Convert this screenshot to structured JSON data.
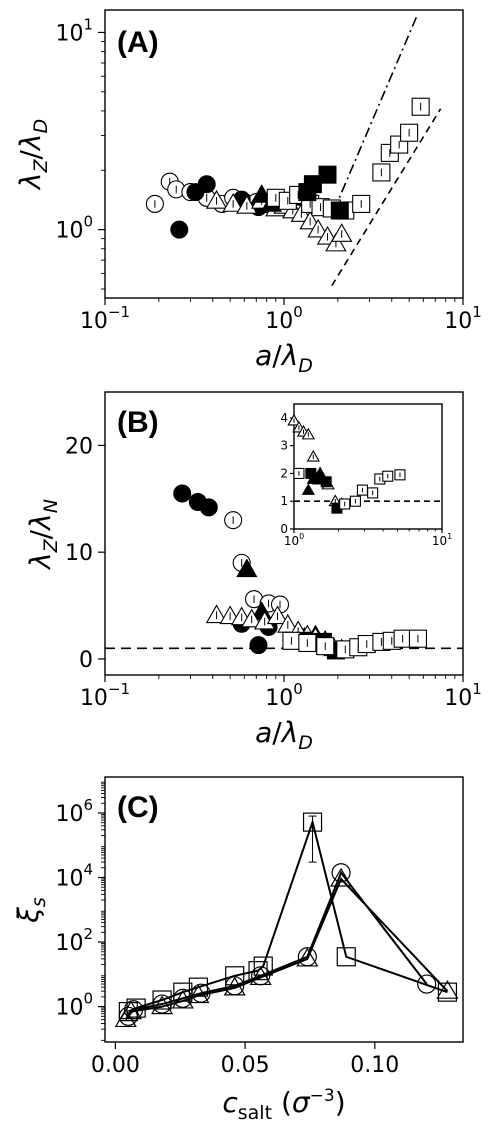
{
  "chart_data": [
    {
      "panel": "(A)",
      "type": "scatter",
      "xlabel": "a/λ_D",
      "ylabel": "λ_Z/λ_D",
      "xscale": "log",
      "yscale": "log",
      "xlim": [
        0.1,
        10
      ],
      "ylim": [
        0.45,
        13
      ],
      "xticks": [
        {
          "v": 0.1,
          "b": "10",
          "e": "−1"
        },
        {
          "v": 1,
          "b": "10",
          "e": "0"
        },
        {
          "v": 10,
          "b": "10",
          "e": "1"
        }
      ],
      "yticks": [
        {
          "v": 1,
          "b": "10",
          "e": "0"
        },
        {
          "v": 10,
          "b": "10",
          "e": "1"
        }
      ],
      "series": [
        {
          "marker": "circle-open",
          "points": [
            [
              0.19,
              1.35
            ],
            [
              0.23,
              1.75
            ],
            [
              0.25,
              1.6
            ],
            [
              0.3,
              1.55
            ],
            [
              0.37,
              1.45
            ],
            [
              0.45,
              1.35
            ],
            [
              0.52,
              1.45
            ],
            [
              0.6,
              1.38
            ],
            [
              0.7,
              1.38
            ],
            [
              0.8,
              1.35
            ]
          ]
        },
        {
          "marker": "circle-filled",
          "points": [
            [
              0.26,
              1.0
            ],
            [
              0.32,
              1.55
            ],
            [
              0.37,
              1.7
            ],
            [
              0.58,
              1.42
            ],
            [
              0.72,
              1.3
            ],
            [
              0.82,
              1.38
            ]
          ]
        },
        {
          "marker": "triangle-open",
          "points": [
            [
              0.42,
              1.4
            ],
            [
              0.52,
              1.35
            ],
            [
              0.62,
              1.32
            ],
            [
              0.75,
              1.4
            ],
            [
              0.9,
              1.28
            ],
            [
              1.0,
              1.32
            ],
            [
              1.12,
              1.25
            ],
            [
              1.25,
              1.2
            ],
            [
              1.4,
              1.1
            ],
            [
              1.55,
              1.0
            ],
            [
              1.75,
              0.92
            ],
            [
              1.95,
              0.85
            ],
            [
              2.1,
              0.95
            ]
          ]
        },
        {
          "marker": "triangle-filled",
          "points": [
            [
              0.75,
              1.5
            ],
            [
              0.85,
              1.35
            ],
            [
              1.25,
              1.45
            ],
            [
              1.4,
              1.5
            ]
          ]
        },
        {
          "marker": "square-open",
          "points": [
            [
              0.9,
              1.45
            ],
            [
              1.05,
              1.4
            ],
            [
              1.2,
              1.5
            ],
            [
              1.4,
              1.35
            ],
            [
              1.6,
              1.3
            ],
            [
              1.85,
              1.28
            ],
            [
              2.2,
              1.25
            ],
            [
              2.7,
              1.35
            ],
            [
              3.5,
              1.95
            ],
            [
              3.9,
              2.45
            ],
            [
              4.4,
              2.7
            ],
            [
              5.0,
              3.1
            ],
            [
              5.8,
              4.2
            ]
          ]
        },
        {
          "marker": "square-filled",
          "points": [
            [
              1.35,
              1.55
            ],
            [
              1.45,
              1.7
            ],
            [
              1.75,
              1.9
            ],
            [
              2.05,
              1.25
            ]
          ]
        }
      ],
      "guides": [
        {
          "style": "dash-dot",
          "from": [
            1.9,
            1.25
          ],
          "to": [
            5.5,
            12
          ]
        },
        {
          "style": "dashed",
          "from": [
            1.85,
            0.52
          ],
          "to": [
            7.5,
            4.1
          ]
        }
      ]
    },
    {
      "panel": "(B)",
      "type": "scatter",
      "xlabel": "a/λ_D",
      "ylabel": "λ_Z/λ_N",
      "xscale": "log",
      "yscale": "linear",
      "xlim": [
        0.1,
        10
      ],
      "ylim": [
        -1.5,
        25
      ],
      "xticks": [
        {
          "v": 0.1,
          "b": "10",
          "e": "−1"
        },
        {
          "v": 1,
          "b": "10",
          "e": "0"
        },
        {
          "v": 10,
          "b": "10",
          "e": "1"
        }
      ],
      "yticks": [
        {
          "v": 0,
          "t": "0"
        },
        {
          "v": 10,
          "t": "10"
        },
        {
          "v": 20,
          "t": "20"
        }
      ],
      "reference_line": {
        "y": 1,
        "style": "dashed"
      },
      "series": [
        {
          "marker": "circle-filled",
          "points": [
            [
              0.27,
              15.5
            ],
            [
              0.33,
              14.7
            ],
            [
              0.38,
              14.2
            ],
            [
              0.58,
              3.3
            ],
            [
              0.72,
              1.3
            ],
            [
              0.82,
              3.0
            ]
          ]
        },
        {
          "marker": "circle-open",
          "points": [
            [
              0.52,
              13.0
            ],
            [
              0.58,
              9.0
            ],
            [
              0.68,
              5.6
            ],
            [
              0.82,
              5.2
            ],
            [
              0.95,
              5.1
            ]
          ]
        },
        {
          "marker": "triangle-filled",
          "points": [
            [
              0.62,
              8.4
            ],
            [
              0.75,
              4.4
            ],
            [
              1.3,
              2.0
            ],
            [
              1.5,
              2.2
            ]
          ]
        },
        {
          "marker": "triangle-open",
          "points": [
            [
              0.42,
              4.1
            ],
            [
              0.5,
              4.0
            ],
            [
              0.58,
              3.9
            ],
            [
              0.66,
              3.7
            ],
            [
              0.78,
              3.5
            ],
            [
              0.92,
              4.0
            ],
            [
              1.05,
              3.2
            ],
            [
              1.2,
              2.6
            ],
            [
              1.35,
              2.2
            ],
            [
              1.5,
              2.0
            ],
            [
              1.7,
              1.7
            ],
            [
              1.9,
              1.0
            ],
            [
              2.1,
              0.9
            ]
          ]
        },
        {
          "marker": "square-filled",
          "points": [
            [
              1.3,
              1.7
            ],
            [
              1.45,
              1.5
            ],
            [
              1.65,
              1.6
            ],
            [
              1.95,
              0.8
            ]
          ]
        },
        {
          "marker": "square-open",
          "points": [
            [
              1.1,
              1.7
            ],
            [
              1.35,
              1.5
            ],
            [
              1.7,
              1.2
            ],
            [
              2.2,
              0.9
            ],
            [
              2.6,
              1.1
            ],
            [
              2.9,
              1.4
            ],
            [
              3.5,
              1.6
            ],
            [
              4.0,
              1.7
            ],
            [
              4.6,
              1.9
            ],
            [
              5.6,
              1.9
            ]
          ]
        }
      ],
      "inset": {
        "xscale": "log",
        "xlim": [
          1,
          10
        ],
        "ylim": [
          0,
          4.5
        ],
        "xticks": [
          {
            "v": 1,
            "b": "10",
            "e": "0"
          },
          {
            "v": 10,
            "b": "10",
            "e": "1"
          }
        ],
        "yticks": [
          {
            "v": 0,
            "t": "0"
          },
          {
            "v": 1,
            "t": "1"
          },
          {
            "v": 2,
            "t": "2"
          },
          {
            "v": 3,
            "t": "3"
          },
          {
            "v": 4,
            "t": "4"
          }
        ],
        "reference_line": {
          "y": 1,
          "style": "dashed"
        },
        "series": [
          {
            "marker": "triangle-open",
            "points": [
              [
                1.0,
                3.9
              ],
              [
                1.08,
                3.65
              ],
              [
                1.16,
                3.5
              ],
              [
                1.25,
                3.4
              ],
              [
                1.35,
                2.6
              ],
              [
                1.5,
                2.0
              ],
              [
                1.7,
                1.6
              ],
              [
                1.9,
                1.0
              ],
              [
                2.1,
                0.9
              ]
            ]
          },
          {
            "marker": "triangle-filled",
            "points": [
              [
                1.25,
                1.4
              ],
              [
                1.35,
                1.8
              ],
              [
                1.5,
                2.0
              ]
            ]
          },
          {
            "marker": "square-filled",
            "points": [
              [
                1.3,
                2.0
              ],
              [
                1.45,
                1.8
              ],
              [
                1.65,
                1.7
              ],
              [
                1.95,
                0.75
              ]
            ]
          },
          {
            "marker": "square-open",
            "points": [
              [
                1.08,
                2.0
              ],
              [
                2.2,
                0.9
              ],
              [
                2.6,
                1.0
              ],
              [
                2.9,
                1.4
              ],
              [
                3.4,
                1.3
              ],
              [
                3.8,
                1.8
              ],
              [
                4.3,
                1.9
              ],
              [
                5.2,
                1.95
              ]
            ]
          }
        ]
      }
    },
    {
      "panel": "(C)",
      "type": "line",
      "xlabel": "c_salt (σ^−3)",
      "ylabel": "ξ_s",
      "xscale": "linear",
      "yscale": "log",
      "xlim": [
        -0.004,
        0.134
      ],
      "ylim": [
        0.08,
        13000000.0
      ],
      "xticks": [
        {
          "v": 0.0,
          "t": "0.00"
        },
        {
          "v": 0.05,
          "t": "0.05"
        },
        {
          "v": 0.1,
          "t": "0.10"
        }
      ],
      "yticks": [
        {
          "v": 1,
          "b": "10",
          "e": "0"
        },
        {
          "v": 100,
          "b": "10",
          "e": "2"
        },
        {
          "v": 10000,
          "b": "10",
          "e": "4"
        },
        {
          "v": 1000000,
          "b": "10",
          "e": "6"
        }
      ],
      "series": [
        {
          "marker": "square",
          "x": [
            0.005,
            0.008,
            0.018,
            0.026,
            0.032,
            0.046,
            0.055,
            0.057,
            0.076,
            0.089,
            0.128
          ],
          "y": [
            0.7,
            0.9,
            1.6,
            2.8,
            4.0,
            9.0,
            13.0,
            18.0,
            520000.0,
            35.0,
            2.8
          ]
        },
        {
          "marker": "circle",
          "x": [
            0.005,
            0.007,
            0.018,
            0.026,
            0.033,
            0.046,
            0.056,
            0.074,
            0.087,
            0.12
          ],
          "y": [
            0.5,
            0.8,
            1.2,
            1.8,
            2.6,
            4.4,
            9.0,
            35.0,
            14000.0,
            5.0
          ]
        },
        {
          "marker": "triangle",
          "x": [
            0.004,
            0.006,
            0.018,
            0.026,
            0.032,
            0.046,
            0.056,
            0.074,
            0.087,
            0.128
          ],
          "y": [
            0.4,
            0.7,
            1.0,
            1.5,
            2.2,
            3.8,
            8.0,
            30.0,
            9000.0,
            3.0
          ]
        }
      ],
      "error_bar": {
        "series": 0,
        "point": 8,
        "low": 30000.0,
        "high": 800000.0
      }
    }
  ]
}
